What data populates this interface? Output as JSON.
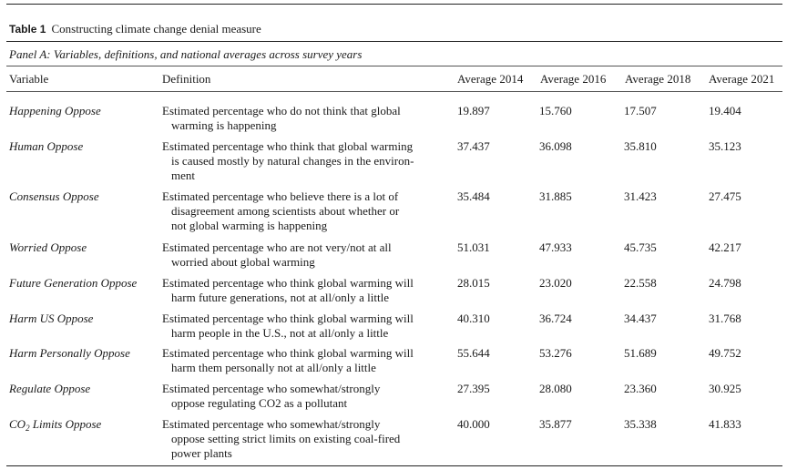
{
  "table_label": "Table 1",
  "table_title": "Constructing climate change denial measure",
  "panel_title": "Panel A: Variables, definitions, and national averages across survey years",
  "headers": {
    "variable": "Variable",
    "definition": "Definition",
    "y2014": "Average 2014",
    "y2016": "Average 2016",
    "y2018": "Average 2018",
    "y2021": "Average 2021"
  },
  "rows": [
    {
      "variable": "Happening Oppose",
      "definition": [
        "Estimated percentage who do not think that global",
        "warming is happening"
      ],
      "values": [
        "19.897",
        "15.760",
        "17.507",
        "19.404"
      ]
    },
    {
      "variable": "Human Oppose",
      "definition": [
        "Estimated percentage who think that global warming",
        "is caused mostly by natural changes in the environ-",
        "ment"
      ],
      "values": [
        "37.437",
        "36.098",
        "35.810",
        "35.123"
      ]
    },
    {
      "variable": "Consensus Oppose",
      "definition": [
        "Estimated percentage who believe there is a lot of",
        "disagreement among scientists about whether or",
        "not global warming is happening"
      ],
      "values": [
        "35.484",
        "31.885",
        "31.423",
        "27.475"
      ]
    },
    {
      "variable": "Worried Oppose",
      "definition": [
        "Estimated percentage who are not very/not at all",
        "worried about global warming"
      ],
      "values": [
        "51.031",
        "47.933",
        "45.735",
        "42.217"
      ]
    },
    {
      "variable": "Future Generation Oppose",
      "definition": [
        "Estimated percentage who think global warming will",
        "harm future generations, not at all/only a little"
      ],
      "values": [
        "28.015",
        "23.020",
        "22.558",
        "24.798"
      ]
    },
    {
      "variable": "Harm US Oppose",
      "definition": [
        "Estimated percentage who think global warming will",
        "harm people in the U.S., not at all/only a little"
      ],
      "values": [
        "40.310",
        "36.724",
        "34.437",
        "31.768"
      ]
    },
    {
      "variable": "Harm Personally Oppose",
      "definition": [
        "Estimated percentage who think global warming will",
        "harm them personally not at all/only a little"
      ],
      "values": [
        "55.644",
        "53.276",
        "51.689",
        "49.752"
      ]
    },
    {
      "variable": "Regulate Oppose",
      "definition": [
        "Estimated percentage who somewhat/strongly",
        "oppose regulating CO2 as a pollutant"
      ],
      "values": [
        "27.395",
        "28.080",
        "23.360",
        "30.925"
      ]
    },
    {
      "variable_prefix": "CO",
      "variable_sub": "2",
      "variable_suffix": " Limits Oppose",
      "definition": [
        "Estimated percentage who somewhat/strongly",
        "oppose setting strict limits on existing coal-fired",
        "power plants"
      ],
      "values": [
        "40.000",
        "35.877",
        "35.338",
        "41.833"
      ]
    }
  ]
}
